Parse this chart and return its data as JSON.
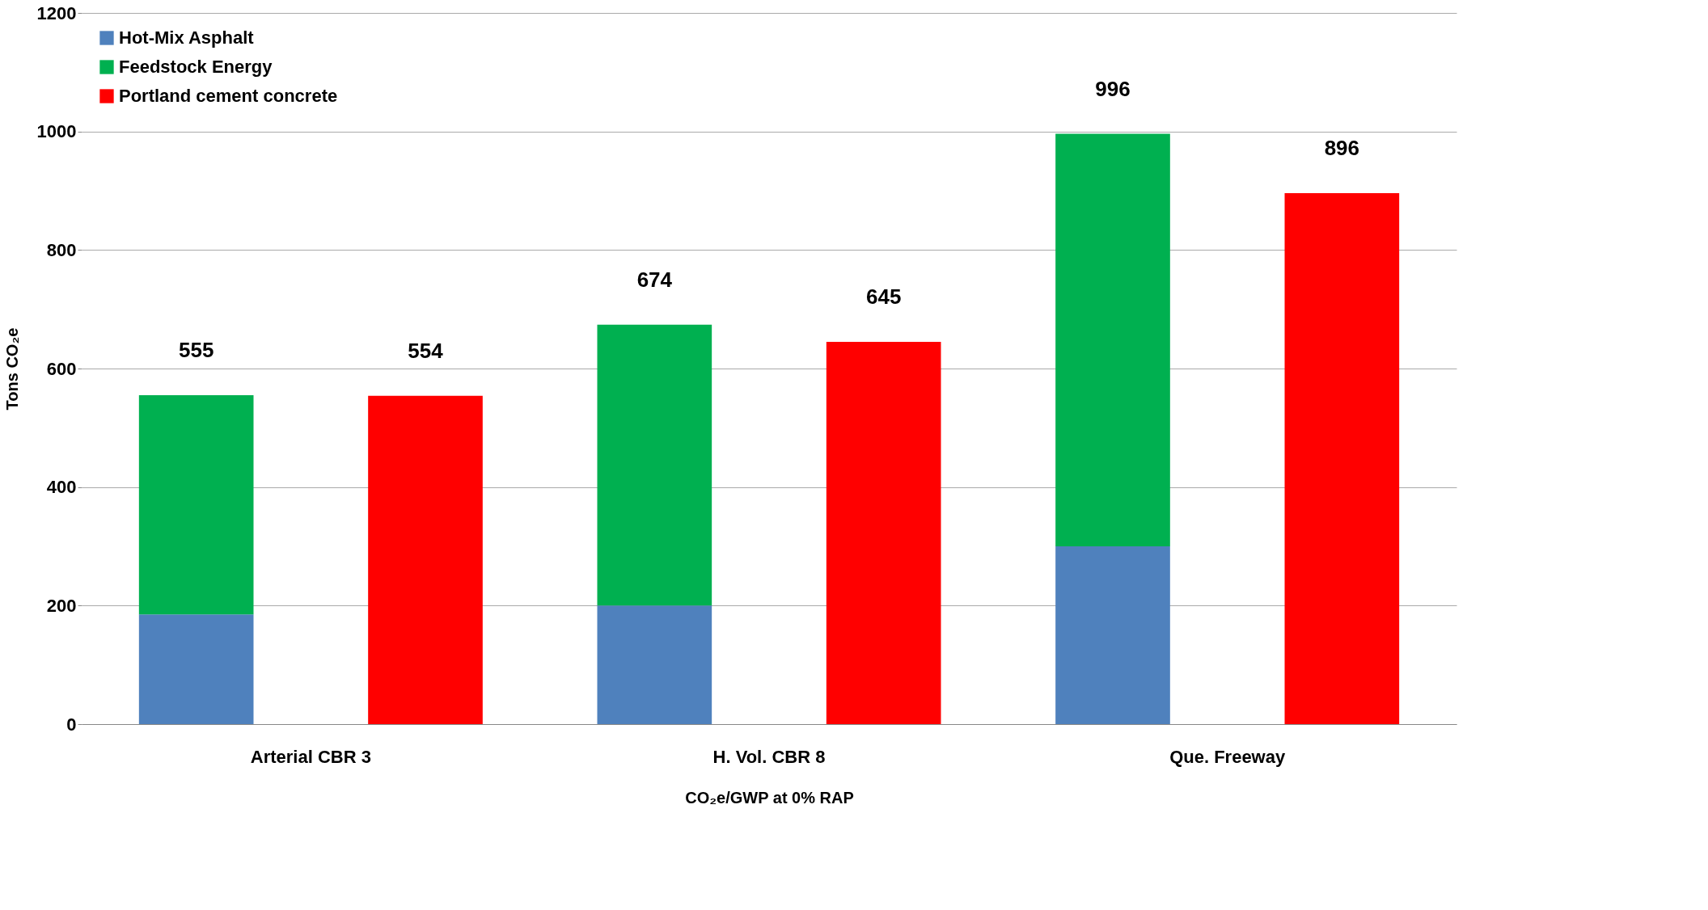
{
  "chart_data": {
    "type": "bar",
    "stacked": true,
    "categories": [
      "Arterial CBR 3",
      null,
      "H. Vol. CBR 8",
      null,
      "Que. Freeway",
      null
    ],
    "series": [
      {
        "name": "Hot-Mix Asphalt",
        "color": "#4f81bd",
        "values": [
          185,
          null,
          200,
          null,
          300,
          null
        ]
      },
      {
        "name": "Feedstock Energy",
        "color": "#00b050",
        "values": [
          370,
          null,
          474,
          null,
          696,
          null
        ]
      },
      {
        "name": "Portland cement concrete",
        "color": "#ff0000",
        "values": [
          null,
          554,
          null,
          645,
          null,
          896
        ]
      }
    ],
    "totals": [
      "555",
      "554",
      "674",
      "645",
      "996",
      "896"
    ],
    "xlabel": "CO₂e/GWP at 0% RAP",
    "ylabel": "Tons CO₂e",
    "ylim": [
      0,
      1200
    ],
    "yticks": [
      0,
      200,
      400,
      600,
      800,
      1000,
      1200
    ],
    "grid": "y",
    "legend": "top left"
  }
}
